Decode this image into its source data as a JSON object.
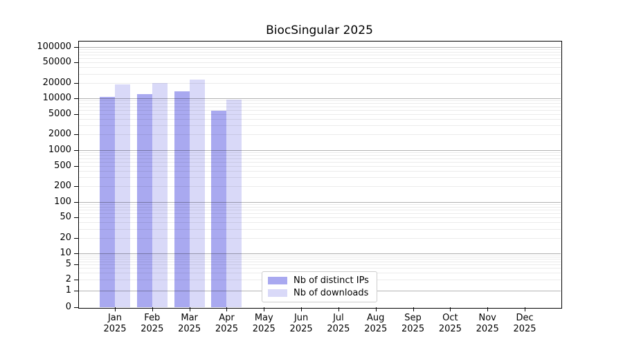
{
  "chart_data": {
    "type": "bar",
    "title": "BiocSingular 2025",
    "categories": [
      "Jan",
      "Feb",
      "Mar",
      "Apr",
      "May",
      "Jun",
      "Jul",
      "Aug",
      "Sep",
      "Oct",
      "Nov",
      "Dec"
    ],
    "category_year": "2025",
    "series": [
      {
        "name": "Nb of distinct IPs",
        "color": "#a9a9f0",
        "values": [
          10700,
          12000,
          13500,
          5700,
          0,
          0,
          0,
          0,
          0,
          0,
          0,
          0
        ]
      },
      {
        "name": "Nb of downloads",
        "color": "#d9d9f8",
        "values": [
          18900,
          20000,
          23500,
          9300,
          0,
          0,
          0,
          0,
          0,
          0,
          0,
          0
        ]
      }
    ],
    "y_axis": {
      "scale": "log-with-zero",
      "ticks": [
        100000,
        50000,
        20000,
        10000,
        5000,
        2000,
        1000,
        500,
        200,
        100,
        50,
        20,
        10,
        5,
        2,
        1,
        0
      ],
      "ylim": [
        0,
        130000
      ],
      "grid": "major-and-minor"
    },
    "x_axis": {
      "label_lines": 2
    },
    "legend": {
      "position": "lower center"
    },
    "colors": {
      "major_grid": "#b0b0b0",
      "minor_grid": "#ececec",
      "axis": "#000000",
      "legend_border": "#cccccc"
    }
  }
}
